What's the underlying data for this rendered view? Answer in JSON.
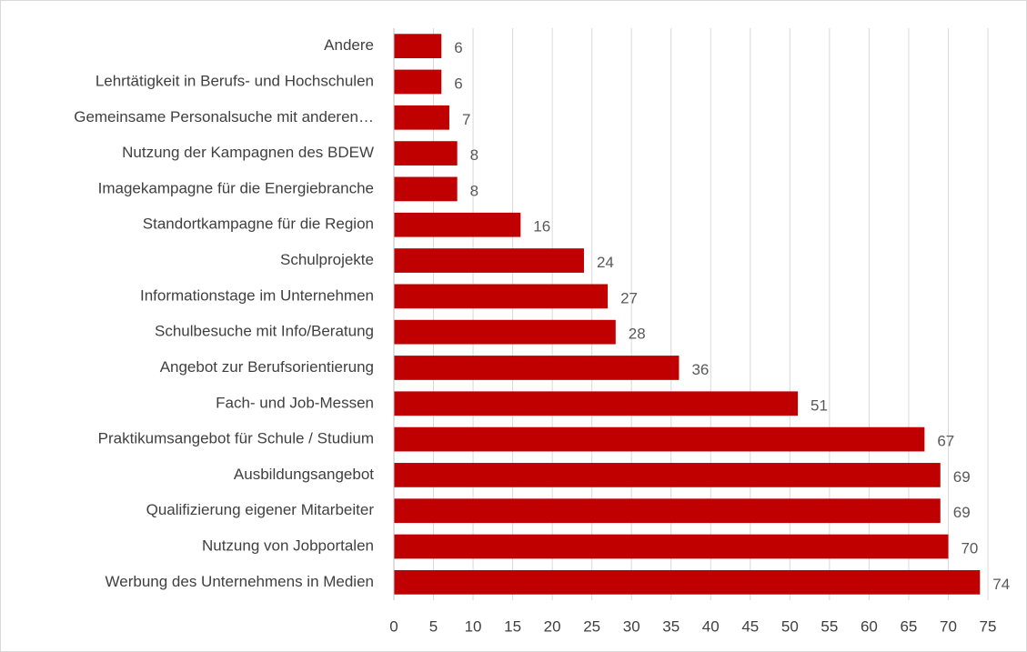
{
  "chart_data": {
    "type": "bar",
    "orientation": "horizontal",
    "categories": [
      "Andere",
      "Lehrtätigkeit in Berufs- und Hochschulen",
      "Gemeinsame Personalsuche mit anderen…",
      "Nutzung der Kampagnen des BDEW",
      "Imagekampagne für die Energiebranche",
      "Standortkampagne für die Region",
      "Schulprojekte",
      "Informationstage im Unternehmen",
      "Schulbesuche mit Info/Beratung",
      "Angebot zur Berufsorientierung",
      "Fach- und Job-Messen",
      "Praktikumsangebot für Schule / Studium",
      "Ausbildungsangebot",
      "Qualifizierung eigener Mitarbeiter",
      "Nutzung von Jobportalen",
      "Werbung des Unternehmens in Medien"
    ],
    "values": [
      6,
      6,
      7,
      8,
      8,
      16,
      24,
      27,
      28,
      36,
      51,
      67,
      69,
      69,
      70,
      74
    ],
    "color": "#c00000",
    "xlim": [
      0,
      75
    ],
    "xticks": [
      0,
      5,
      10,
      15,
      20,
      25,
      30,
      35,
      40,
      45,
      50,
      55,
      60,
      65,
      70,
      75
    ],
    "grid": true
  }
}
